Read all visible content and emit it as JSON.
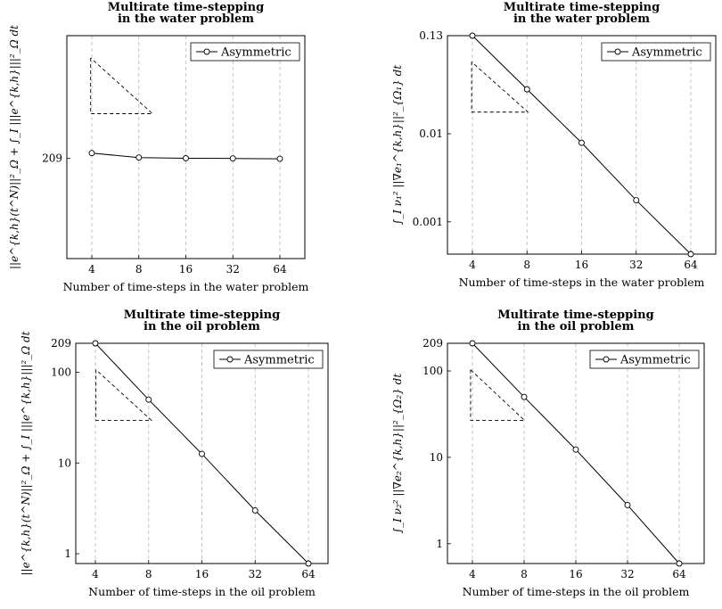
{
  "chart_data": [
    {
      "type": "line",
      "title": [
        "Multirate time-stepping",
        "in the water problem"
      ],
      "xlabel": "Number of time-steps in the water problem",
      "ylabel": "||e^{k,h}(t^N)||²_Ω + ∫_I |||e^{k,h}|||²_Ω dt",
      "x": [
        4,
        8,
        16,
        32,
        64
      ],
      "xticks": [
        "4",
        "8",
        "16",
        "32",
        "64"
      ],
      "yscale": "log",
      "ylim": [
        160,
        290
      ],
      "yticks": [
        209
      ],
      "yticklabels": [
        "209"
      ],
      "series": [
        {
          "name": "Asymmetric",
          "values": [
            212,
            209.5,
            209.1,
            209,
            208.8
          ]
        }
      ],
      "legend": "top-right",
      "grid": "vertical-dashed",
      "slope_triangle": true
    },
    {
      "type": "line",
      "title": [
        "Multirate time-stepping",
        "in the water problem"
      ],
      "xlabel": "Number of time-steps in the water problem",
      "ylabel": "∫_I ν₁² ||∇e₁^{k,h}||²_{Ω₁} dt",
      "x": [
        4,
        8,
        16,
        32,
        64
      ],
      "xticks": [
        "4",
        "8",
        "16",
        "32",
        "64"
      ],
      "yscale": "log",
      "ylim": [
        0.00043,
        0.13
      ],
      "yticks": [
        0.001,
        0.01,
        0.13
      ],
      "yticklabels": [
        "0.001",
        "0.01",
        "0.13"
      ],
      "series": [
        {
          "name": "Asymmetric",
          "values": [
            0.13,
            0.032,
            0.0079,
            0.00176,
            0.00043
          ]
        }
      ],
      "legend": "top-right",
      "grid": "vertical-dashed",
      "slope_triangle": true
    },
    {
      "type": "line",
      "title": [
        "Multirate time-stepping",
        "in the oil problem"
      ],
      "xlabel": "Number of time-steps in the oil problem",
      "ylabel": "||e^{k,h}(t^N)||²_Ω + ∫_I |||e^{k,h}|||²_Ω dt",
      "x": [
        4,
        8,
        16,
        32,
        64
      ],
      "xticks": [
        "4",
        "8",
        "16",
        "32",
        "64"
      ],
      "yscale": "log",
      "ylim": [
        0.78,
        209
      ],
      "yticks": [
        1,
        10,
        100,
        209
      ],
      "yticklabels": [
        "1",
        "10",
        "100",
        "209"
      ],
      "series": [
        {
          "name": "Asymmetric",
          "values": [
            209,
            50,
            12.6,
            3.0,
            0.78
          ]
        }
      ],
      "legend": "top-right",
      "grid": "vertical-dashed",
      "slope_triangle": true
    },
    {
      "type": "line",
      "title": [
        "Multirate time-stepping",
        "in the oil problem"
      ],
      "xlabel": "Number of time-steps in the oil problem",
      "ylabel": "∫_I ν₂² ||∇e₂^{k,h}||²_{Ω₂} dt",
      "x": [
        4,
        8,
        16,
        32,
        64
      ],
      "xticks": [
        "4",
        "8",
        "16",
        "32",
        "64"
      ],
      "yscale": "log",
      "ylim": [
        0.59,
        209
      ],
      "yticks": [
        1,
        10,
        100,
        209
      ],
      "yticklabels": [
        "1",
        "10",
        "100",
        "209"
      ],
      "series": [
        {
          "name": "Asymmetric",
          "values": [
            209,
            50,
            12.3,
            2.8,
            0.59
          ]
        }
      ],
      "legend": "top-right",
      "grid": "vertical-dashed",
      "slope_triangle": true
    }
  ]
}
